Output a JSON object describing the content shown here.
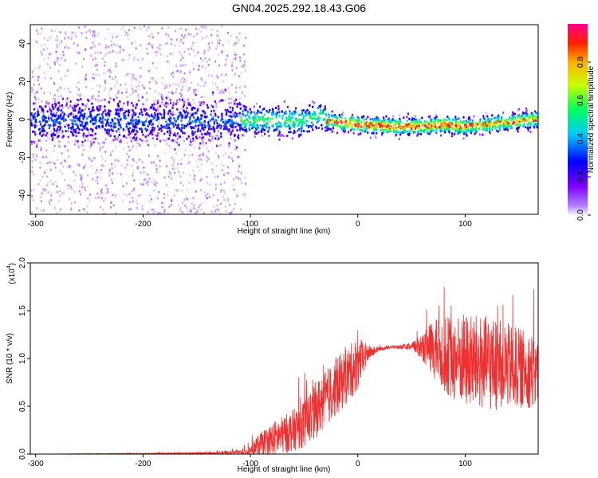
{
  "figure": {
    "title": "GN04.2025.292.18.43.G06"
  },
  "chart_data": [
    {
      "type": "heatmap",
      "panel": "top",
      "xlabel": "Height of straight line (km)",
      "ylabel": "Frequency (Hz)",
      "xlim": [
        -305,
        168
      ],
      "ylim": [
        -50,
        50
      ],
      "xticks": [
        -300,
        -200,
        -100,
        0,
        100
      ],
      "yticks": [
        -40,
        -20,
        0,
        20,
        40
      ],
      "colorbar": {
        "label": "Normalized spectral amplitude",
        "range": [
          0,
          1
        ],
        "ticks": [
          0.0,
          0.2,
          0.4,
          0.6,
          0.8
        ],
        "tick_labels": [
          "0.0",
          "0.2",
          "0.4",
          "0.6",
          "0.8"
        ],
        "colormap": [
          "#f8f8ff",
          "#7f00ff",
          "#0000ff",
          "#00c8ff",
          "#00ff60",
          "#c8ff00",
          "#ffb000",
          "#ff2000",
          "#ff0090"
        ]
      },
      "ridge": {
        "description_points_km": [
          -300,
          -120,
          -50,
          -35,
          -30,
          0,
          30,
          60,
          80,
          100,
          120,
          150,
          168
        ],
        "center_hz": [
          0,
          0,
          0,
          3,
          0,
          -2,
          -3,
          -3,
          -2,
          -3,
          -2,
          0,
          1
        ]
      },
      "grid": false
    },
    {
      "type": "line",
      "panel": "bottom",
      "xlabel": "Height of straight line (km)",
      "ylabel": "SNR (10 * v/v)",
      "y_multiplier_label": "(x10",
      "y_multiplier_exp": "4",
      "xlim": [
        -305,
        168
      ],
      "ylim": [
        0,
        2.0
      ],
      "xticks": [
        -300,
        -200,
        -100,
        0,
        100
      ],
      "yticks": [
        0.0,
        0.5,
        1.0,
        1.5,
        2.0
      ],
      "ytick_labels": [
        "0.0",
        "0.5",
        "1.0",
        "1.5",
        "2.0"
      ],
      "series": [
        {
          "color": "#f03030",
          "envelope_x": [
            -305,
            -200,
            -140,
            -110,
            -100,
            -95,
            -80,
            -60,
            -50,
            -40,
            -30,
            -20,
            -10,
            0,
            10,
            20,
            30,
            40,
            50,
            60,
            70,
            80,
            90,
            100,
            110,
            120,
            130,
            140,
            150,
            160,
            168
          ],
          "envelope_mean": [
            0.0,
            0.005,
            0.01,
            0.02,
            0.04,
            0.08,
            0.15,
            0.25,
            0.32,
            0.45,
            0.58,
            0.7,
            0.82,
            0.95,
            1.06,
            1.1,
            1.12,
            1.12,
            1.12,
            1.13,
            1.1,
            1.05,
            1.0,
            0.98,
            0.96,
            0.95,
            0.93,
            0.92,
            0.9,
            0.88,
            0.85
          ],
          "envelope_spread": [
            0.0,
            0.005,
            0.01,
            0.02,
            0.05,
            0.1,
            0.18,
            0.22,
            0.25,
            0.3,
            0.3,
            0.3,
            0.3,
            0.28,
            0.08,
            0.02,
            0.02,
            0.02,
            0.04,
            0.15,
            0.3,
            0.4,
            0.45,
            0.5,
            0.5,
            0.5,
            0.48,
            0.45,
            0.42,
            0.4,
            0.35
          ]
        }
      ],
      "grid": false
    }
  ]
}
